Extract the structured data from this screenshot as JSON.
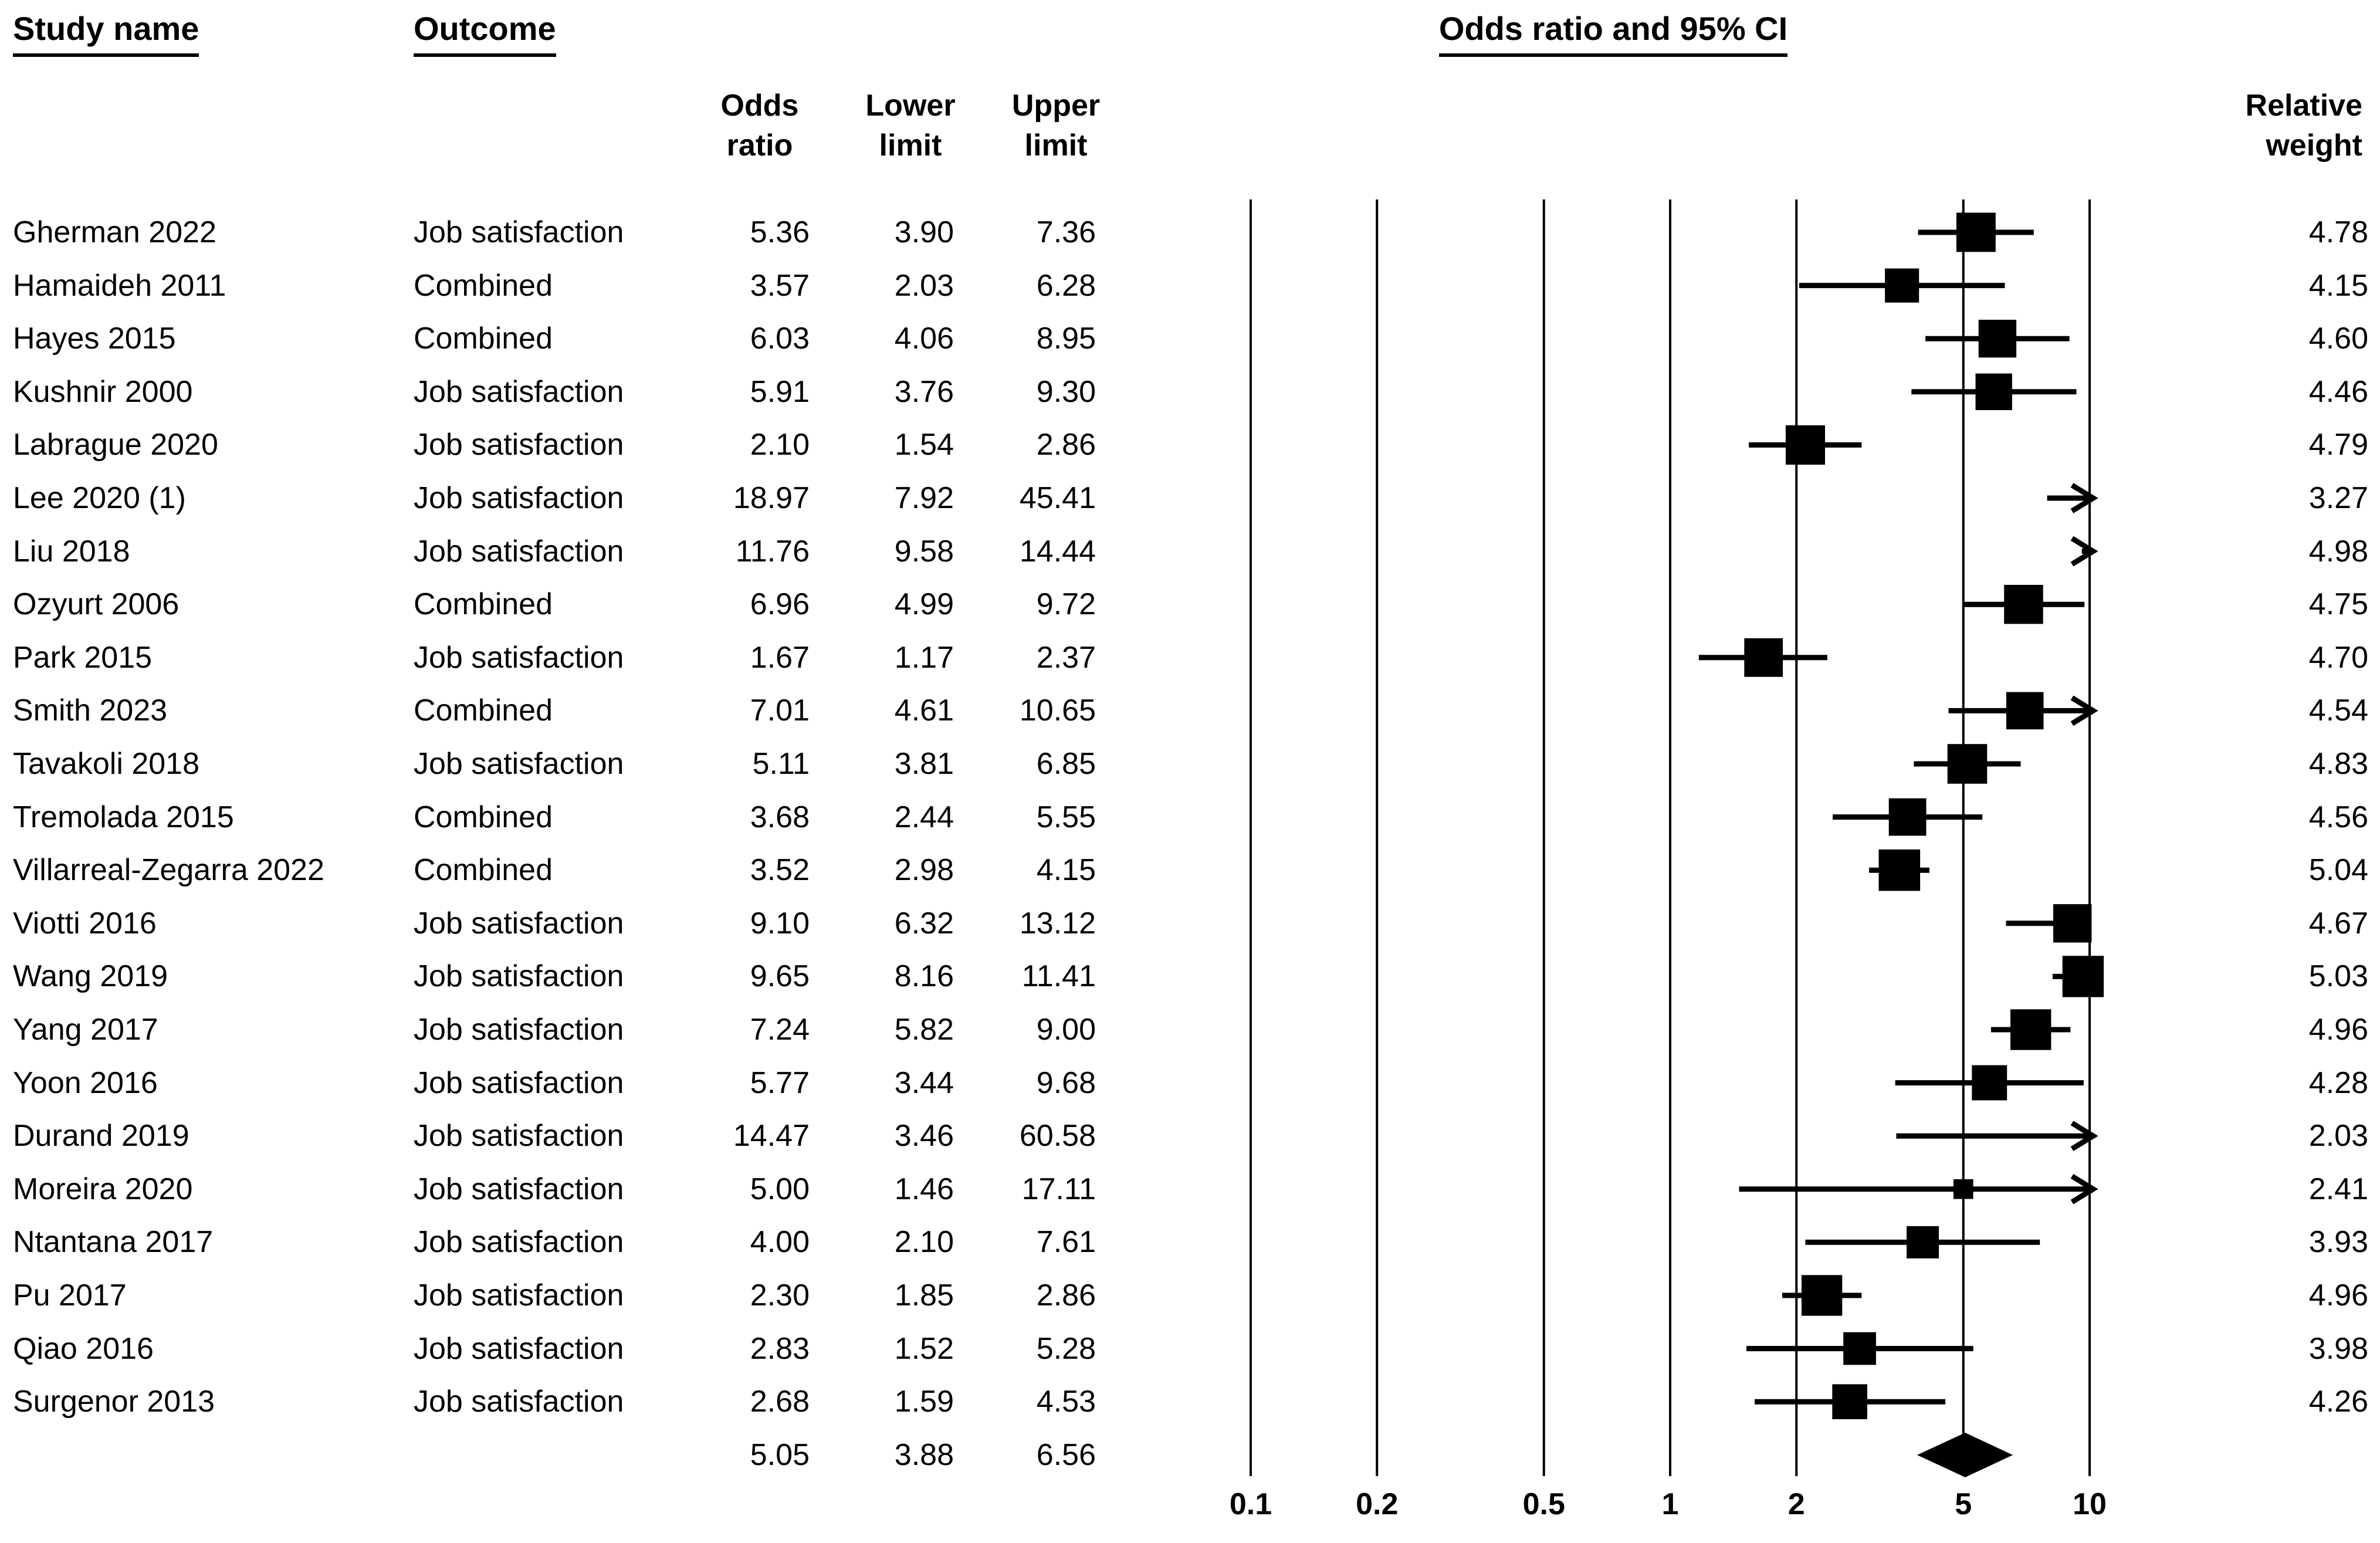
{
  "headers": {
    "study_name": "Study name",
    "outcome": "Outcome",
    "or_ci": "Odds ratio and 95% CI",
    "odds_ratio_col": "Odds ratio",
    "lower_col": "Lower limit",
    "upper_col": "Upper limit",
    "relative_weight": "Relative weight"
  },
  "colors": {
    "ink": "#000000",
    "background": "#ffffff"
  },
  "chart_data": {
    "type": "forest",
    "title": "Odds ratio and 95% CI",
    "x_scale": "log10",
    "axis_ticks": [
      "0.1",
      "0.2",
      "0.5",
      "1",
      "2",
      "5",
      "10"
    ],
    "xlim": [
      0.1,
      10
    ],
    "clip_max": 10,
    "grid": "vertical-lines",
    "marker": "black-square-sized-by-weight",
    "summary_marker": "black-diamond",
    "studies": [
      {
        "name": "Gherman 2022",
        "outcome": "Job satisfaction",
        "or": 5.36,
        "lower": 3.9,
        "upper": 7.36,
        "weight": 4.78,
        "arrow": false
      },
      {
        "name": "Hamaideh 2011",
        "outcome": "Combined",
        "or": 3.57,
        "lower": 2.03,
        "upper": 6.28,
        "weight": 4.15,
        "arrow": false
      },
      {
        "name": "Hayes 2015",
        "outcome": "Combined",
        "or": 6.03,
        "lower": 4.06,
        "upper": 8.95,
        "weight": 4.6,
        "arrow": false
      },
      {
        "name": "Kushnir 2000",
        "outcome": "Job satisfaction",
        "or": 5.91,
        "lower": 3.76,
        "upper": 9.3,
        "weight": 4.46,
        "arrow": false
      },
      {
        "name": "Labrague 2020",
        "outcome": "Job satisfaction",
        "or": 2.1,
        "lower": 1.54,
        "upper": 2.86,
        "weight": 4.79,
        "arrow": false
      },
      {
        "name": "Lee 2020 (1)",
        "outcome": "Job satisfaction",
        "or": 18.97,
        "lower": 7.92,
        "upper": 45.41,
        "weight": 3.27,
        "arrow": true
      },
      {
        "name": "Liu 2018",
        "outcome": "Job satisfaction",
        "or": 11.76,
        "lower": 9.58,
        "upper": 14.44,
        "weight": 4.98,
        "arrow": true
      },
      {
        "name": "Ozyurt 2006",
        "outcome": "Combined",
        "or": 6.96,
        "lower": 4.99,
        "upper": 9.72,
        "weight": 4.75,
        "arrow": false
      },
      {
        "name": "Park 2015",
        "outcome": "Job satisfaction",
        "or": 1.67,
        "lower": 1.17,
        "upper": 2.37,
        "weight": 4.7,
        "arrow": false
      },
      {
        "name": "Smith 2023",
        "outcome": "Combined",
        "or": 7.01,
        "lower": 4.61,
        "upper": 10.65,
        "weight": 4.54,
        "arrow": true
      },
      {
        "name": "Tavakoli 2018",
        "outcome": "Job satisfaction",
        "or": 5.11,
        "lower": 3.81,
        "upper": 6.85,
        "weight": 4.83,
        "arrow": false
      },
      {
        "name": "Tremolada 2015",
        "outcome": "Combined",
        "or": 3.68,
        "lower": 2.44,
        "upper": 5.55,
        "weight": 4.56,
        "arrow": false
      },
      {
        "name": "Villarreal-Zegarra 2022",
        "outcome": "Combined",
        "or": 3.52,
        "lower": 2.98,
        "upper": 4.15,
        "weight": 5.04,
        "arrow": false
      },
      {
        "name": "Viotti 2016",
        "outcome": "Job satisfaction",
        "or": 9.1,
        "lower": 6.32,
        "upper": 13.12,
        "weight": 4.67,
        "arrow": false
      },
      {
        "name": "Wang 2019",
        "outcome": "Job satisfaction",
        "or": 9.65,
        "lower": 8.16,
        "upper": 11.41,
        "weight": 5.03,
        "arrow": false
      },
      {
        "name": "Yang 2017",
        "outcome": "Job satisfaction",
        "or": 7.24,
        "lower": 5.82,
        "upper": 9.0,
        "weight": 4.96,
        "arrow": false
      },
      {
        "name": "Yoon 2016",
        "outcome": "Job satisfaction",
        "or": 5.77,
        "lower": 3.44,
        "upper": 9.68,
        "weight": 4.28,
        "arrow": false
      },
      {
        "name": "Durand 2019",
        "outcome": "Job satisfaction",
        "or": 14.47,
        "lower": 3.46,
        "upper": 60.58,
        "weight": 2.03,
        "arrow": true
      },
      {
        "name": "Moreira 2020",
        "outcome": "Job satisfaction",
        "or": 5.0,
        "lower": 1.46,
        "upper": 17.11,
        "weight": 2.41,
        "arrow": true
      },
      {
        "name": "Ntantana 2017",
        "outcome": "Job satisfaction",
        "or": 4.0,
        "lower": 2.1,
        "upper": 7.61,
        "weight": 3.93,
        "arrow": false
      },
      {
        "name": "Pu 2017",
        "outcome": "Job satisfaction",
        "or": 2.3,
        "lower": 1.85,
        "upper": 2.86,
        "weight": 4.96,
        "arrow": false
      },
      {
        "name": "Qiao 2016",
        "outcome": "Job satisfaction",
        "or": 2.83,
        "lower": 1.52,
        "upper": 5.28,
        "weight": 3.98,
        "arrow": false
      },
      {
        "name": "Surgenor 2013",
        "outcome": "Job satisfaction",
        "or": 2.68,
        "lower": 1.59,
        "upper": 4.53,
        "weight": 4.26,
        "arrow": false
      }
    ],
    "summary": {
      "or": 5.05,
      "lower": 3.88,
      "upper": 6.56
    }
  }
}
